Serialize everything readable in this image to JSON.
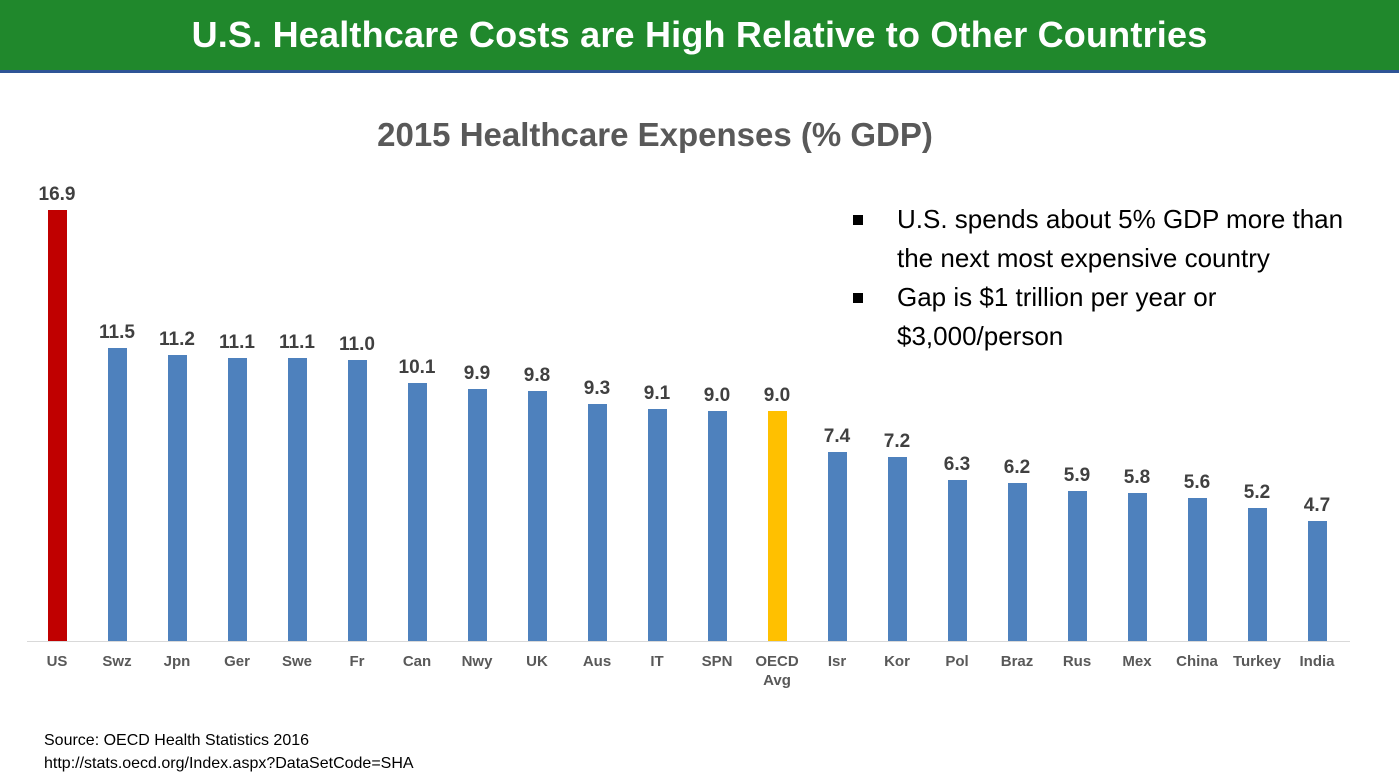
{
  "banner": {
    "title": "U.S. Healthcare Costs are High Relative to Other Countries",
    "bg_color": "#20882C",
    "underline_color": "#2E5496"
  },
  "chart_data": {
    "type": "bar",
    "title": "2015 Healthcare Expenses (% GDP)",
    "categories": [
      "US",
      "Swz",
      "Jpn",
      "Ger",
      "Swe",
      "Fr",
      "Can",
      "Nwy",
      "UK",
      "Aus",
      "IT",
      "SPN",
      "OECD Avg",
      "Isr",
      "Kor",
      "Pol",
      "Braz",
      "Rus",
      "Mex",
      "China",
      "Turkey",
      "India"
    ],
    "values": [
      16.9,
      11.5,
      11.2,
      11.1,
      11.1,
      11.0,
      10.1,
      9.9,
      9.8,
      9.3,
      9.1,
      9.0,
      9.0,
      7.4,
      7.2,
      6.3,
      6.2,
      5.9,
      5.8,
      5.6,
      5.2,
      4.7
    ],
    "bar_colors": {
      "default": "#4E81BD",
      "highlight": "#C00000",
      "accent": "#FFC000"
    },
    "highlight_index": 0,
    "accent_index": 12,
    "xlabel": "",
    "ylabel": "",
    "ylim": [
      0,
      17
    ],
    "grid": false,
    "legend": false,
    "data_labels": true,
    "axis_line_color": "#D9D9D9",
    "value_label_color": "#404040",
    "category_label_color": "#595959"
  },
  "annotations": {
    "bullets": [
      {
        "lines": [
          "U.S. spends about 5% GDP more than",
          "the next most expensive country"
        ]
      },
      {
        "lines": [
          "Gap is $1 trillion per year or",
          "$3,000/person"
        ]
      }
    ]
  },
  "source": {
    "line1": "Source:  OECD Health Statistics 2016",
    "line2": "http://stats.oecd.org/Index.aspx?DataSetCode=SHA"
  }
}
